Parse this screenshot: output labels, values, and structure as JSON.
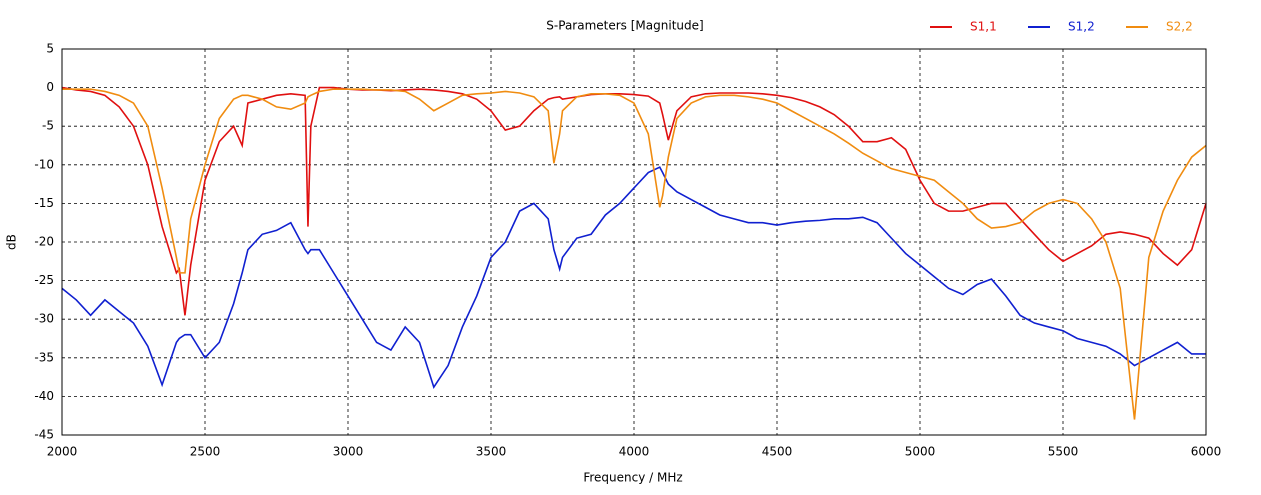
{
  "chart_data": {
    "type": "line",
    "title": "S-Parameters [Magnitude]",
    "x_label": "Frequency / MHz",
    "y_label": "dB",
    "x": [
      2000,
      2050,
      2100,
      2150,
      2200,
      2250,
      2300,
      2350,
      2400,
      2410,
      2430,
      2450,
      2500,
      2550,
      2600,
      2630,
      2650,
      2700,
      2750,
      2800,
      2850,
      2860,
      2870,
      2900,
      2950,
      3000,
      3050,
      3100,
      3150,
      3200,
      3250,
      3300,
      3350,
      3400,
      3450,
      3500,
      3550,
      3600,
      3650,
      3700,
      3720,
      3740,
      3750,
      3800,
      3850,
      3900,
      3950,
      4000,
      4050,
      4090,
      4100,
      4120,
      4150,
      4200,
      4250,
      4300,
      4350,
      4400,
      4450,
      4500,
      4550,
      4600,
      4650,
      4700,
      4750,
      4800,
      4850,
      4900,
      4950,
      5000,
      5050,
      5100,
      5150,
      5200,
      5250,
      5300,
      5350,
      5400,
      5450,
      5500,
      5550,
      5600,
      5650,
      5700,
      5750,
      5800,
      5850,
      5900,
      5950,
      6000
    ],
    "series": [
      {
        "name": "S1,1",
        "color": "#e01010",
        "values": [
          0,
          -0.3,
          -0.5,
          -1,
          -2.5,
          -5,
          -10,
          -18,
          -24,
          -23.5,
          -29.5,
          -23,
          -12,
          -7,
          -5,
          -7.5,
          -2,
          -1.5,
          -1,
          -0.8,
          -1,
          -18,
          -5,
          0,
          0,
          -0.2,
          -0.3,
          -0.3,
          -0.4,
          -0.3,
          -0.2,
          -0.3,
          -0.5,
          -0.8,
          -1.5,
          -3,
          -5.5,
          -5,
          -3,
          -1.5,
          -1.3,
          -1.2,
          -1.5,
          -1.2,
          -0.9,
          -0.8,
          -0.8,
          -0.9,
          -1.1,
          -2,
          -3.5,
          -6.8,
          -3,
          -1.2,
          -0.8,
          -0.7,
          -0.7,
          -0.7,
          -0.8,
          -1,
          -1.3,
          -1.8,
          -2.5,
          -3.5,
          -5,
          -7,
          -7,
          -6.5,
          -8,
          -12,
          -15,
          -16,
          -16,
          -15.5,
          -15,
          -15,
          -17,
          -19,
          -21,
          -22.5,
          -21.5,
          -20.5,
          -19,
          -18.7,
          -19,
          -19.5,
          -21.5,
          -23,
          -21,
          -15
        ]
      },
      {
        "name": "S1,2",
        "color": "#1020d0",
        "values": [
          -26,
          -27.5,
          -29.5,
          -27.5,
          -29,
          -30.5,
          -33.5,
          -38.5,
          -33,
          -32.5,
          -32,
          -32,
          -35,
          -33,
          -28,
          -24,
          -21,
          -19,
          -18.5,
          -17.5,
          -21,
          -21.5,
          -21,
          -21,
          -24,
          -27,
          -30,
          -33,
          -34,
          -31,
          -33,
          -38.8,
          -36,
          -31,
          -27,
          -22,
          -20,
          -16,
          -15,
          -17,
          -21,
          -23.5,
          -22,
          -19.5,
          -19,
          -16.5,
          -15,
          -13,
          -11,
          -10.3,
          -11,
          -12.5,
          -13.5,
          -14.5,
          -15.5,
          -16.5,
          -17,
          -17.5,
          -17.5,
          -17.8,
          -17.5,
          -17.3,
          -17.2,
          -17,
          -17,
          -16.8,
          -17.5,
          -19.5,
          -21.5,
          -23,
          -24.5,
          -26,
          -26.8,
          -25.5,
          -24.8,
          -27,
          -29.5,
          -30.5,
          -31,
          -31.5,
          -32.5,
          -33,
          -33.5,
          -34.5,
          -36,
          -35,
          -34,
          -33,
          -34.5,
          -34.5
        ]
      },
      {
        "name": "S2,2",
        "color": "#f08c10",
        "values": [
          -0.2,
          -0.2,
          -0.2,
          -0.5,
          -1,
          -2,
          -5,
          -13,
          -22,
          -24,
          -24,
          -17,
          -10,
          -4,
          -1.5,
          -1,
          -1,
          -1.5,
          -2.5,
          -2.8,
          -2,
          -1.2,
          -1,
          -0.5,
          -0.2,
          -0.2,
          -0.2,
          -0.3,
          -0.3,
          -0.5,
          -1.5,
          -3,
          -2,
          -1,
          -0.8,
          -0.7,
          -0.5,
          -0.7,
          -1.2,
          -3,
          -9.8,
          -6,
          -3,
          -1.2,
          -0.8,
          -0.8,
          -1,
          -2,
          -6,
          -15.5,
          -14,
          -9,
          -4,
          -2,
          -1.2,
          -1,
          -1,
          -1.2,
          -1.5,
          -2,
          -3,
          -4,
          -5,
          -6,
          -7.2,
          -8.5,
          -9.5,
          -10.5,
          -11,
          -11.5,
          -12,
          -13.5,
          -15,
          -17,
          -18.2,
          -18,
          -17.5,
          -16,
          -15,
          -14.5,
          -15,
          -17,
          -20,
          -26,
          -43,
          -22,
          -16,
          -12,
          -9,
          -7.5
        ]
      }
    ],
    "xlim": [
      2000,
      6000
    ],
    "xticks": [
      2000,
      2500,
      3000,
      3500,
      4000,
      4500,
      5000,
      5500,
      6000
    ],
    "ylim": [
      -45,
      5
    ],
    "yticks": [
      5,
      0,
      -5,
      -10,
      -15,
      -20,
      -25,
      -30,
      -35,
      -40,
      -45
    ],
    "grid": true,
    "legend": "top-right"
  }
}
